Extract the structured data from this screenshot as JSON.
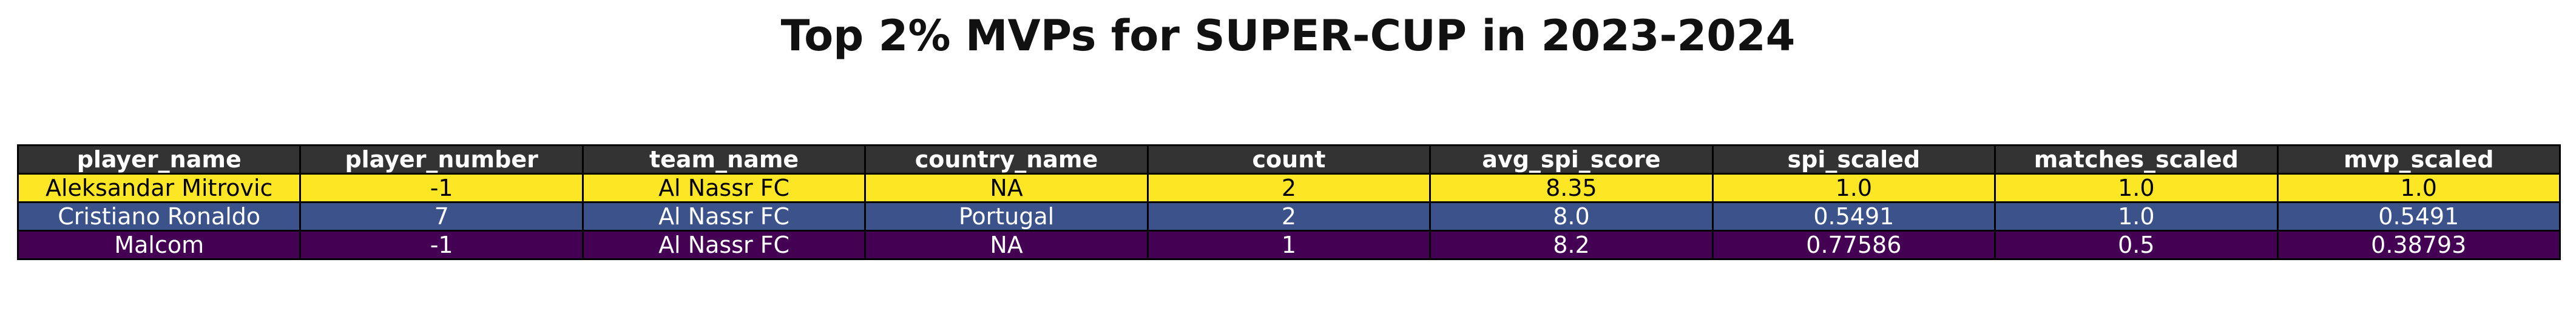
{
  "chart_data": {
    "type": "table",
    "title": "Top 2% MVPs for SUPER-CUP in 2023-2024",
    "columns": [
      "player_name",
      "player_number",
      "team_name",
      "country_name",
      "count",
      "avg_spi_score",
      "spi_scaled",
      "matches_scaled",
      "mvp_scaled"
    ],
    "rows": [
      [
        "Aleksandar Mitrovic",
        "-1",
        "Al Nassr FC",
        "NA",
        "2",
        "8.35",
        "1.0",
        "1.0",
        "1.0"
      ],
      [
        "Cristiano Ronaldo",
        "7",
        "Al Nassr FC",
        "Portugal",
        "2",
        "8.0",
        "0.5491",
        "1.0",
        "0.5491"
      ],
      [
        "Malcom",
        "-1",
        "Al Nassr FC",
        "NA",
        "1",
        "8.2",
        "0.77586",
        "0.5",
        "0.38793"
      ]
    ],
    "row_colors": [
      "#fde725",
      "#3b528b",
      "#440154"
    ],
    "row_text_colors": [
      "#000000",
      "#ffffff",
      "#ffffff"
    ],
    "header_color": "#333333",
    "header_text_color": "#ffffff"
  }
}
